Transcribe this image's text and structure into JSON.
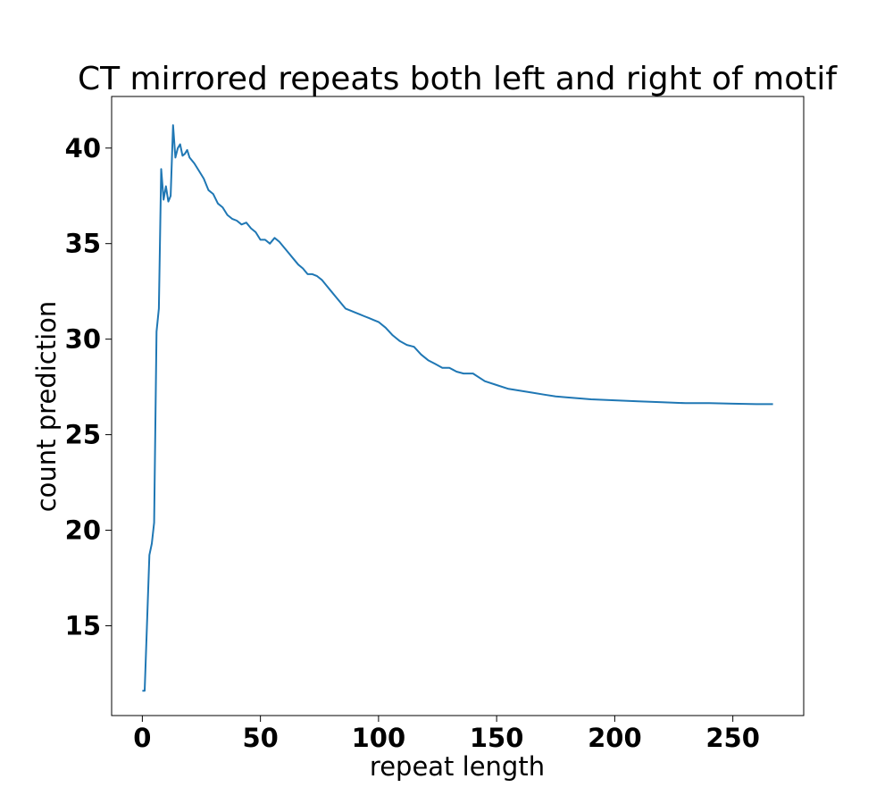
{
  "chart_data": {
    "type": "line",
    "title": "CT mirrored repeats both left and right of motif",
    "xlabel": "repeat length",
    "ylabel": "count prediction",
    "xlim": [
      -13,
      280
    ],
    "ylim": [
      10.3,
      42.7
    ],
    "x_ticks": [
      0,
      50,
      100,
      150,
      200,
      250
    ],
    "y_ticks": [
      15,
      20,
      25,
      30,
      35,
      40
    ],
    "grid": false,
    "color": "#1f77b4",
    "x": [
      0,
      1,
      2,
      3,
      4,
      5,
      6,
      7,
      8,
      9,
      10,
      11,
      12,
      13,
      14,
      15,
      16,
      17,
      18,
      19,
      20,
      22,
      24,
      26,
      28,
      30,
      32,
      34,
      36,
      38,
      40,
      42,
      44,
      46,
      48,
      50,
      52,
      54,
      56,
      58,
      60,
      62,
      64,
      66,
      68,
      70,
      72,
      74,
      76,
      78,
      80,
      82,
      84,
      86,
      88,
      90,
      92,
      94,
      96,
      98,
      100,
      103,
      106,
      109,
      112,
      115,
      118,
      121,
      124,
      127,
      130,
      133,
      136,
      140,
      145,
      150,
      155,
      160,
      165,
      170,
      175,
      180,
      190,
      200,
      210,
      220,
      230,
      240,
      250,
      260,
      267
    ],
    "values": [
      11.6,
      11.6,
      15.2,
      18.7,
      19.3,
      20.4,
      30.4,
      31.6,
      38.9,
      37.3,
      38.0,
      37.2,
      37.5,
      41.2,
      39.5,
      40.0,
      40.2,
      39.6,
      39.7,
      39.9,
      39.5,
      39.2,
      38.8,
      38.4,
      37.8,
      37.6,
      37.1,
      36.9,
      36.5,
      36.3,
      36.2,
      36.0,
      36.1,
      35.8,
      35.6,
      35.2,
      35.2,
      35.0,
      35.3,
      35.1,
      34.8,
      34.5,
      34.2,
      33.9,
      33.7,
      33.4,
      33.4,
      33.3,
      33.1,
      32.8,
      32.5,
      32.2,
      31.9,
      31.6,
      31.5,
      31.4,
      31.3,
      31.2,
      31.1,
      31.0,
      30.9,
      30.6,
      30.2,
      29.9,
      29.7,
      29.6,
      29.2,
      28.9,
      28.7,
      28.5,
      28.5,
      28.3,
      28.2,
      28.2,
      27.8,
      27.6,
      27.4,
      27.3,
      27.2,
      27.1,
      27.0,
      26.95,
      26.85,
      26.8,
      26.75,
      26.7,
      26.65,
      26.65,
      26.62,
      26.6,
      26.6
    ]
  }
}
